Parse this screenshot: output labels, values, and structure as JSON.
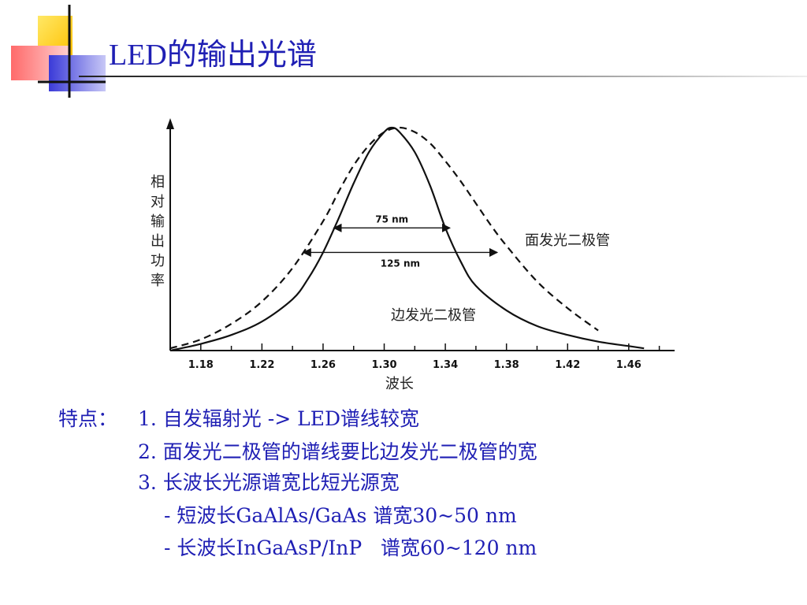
{
  "slide": {
    "title": "LED的输出光谱"
  },
  "chart_data": {
    "type": "line",
    "xlabel": "波长",
    "ylabel_chars": [
      "相",
      "对",
      "输",
      "出",
      "功",
      "率"
    ],
    "x_ticks": [
      "1.18",
      "1.22",
      "1.26",
      "1.30",
      "1.34",
      "1.38",
      "1.42",
      "1.46"
    ],
    "xlim": [
      1.16,
      1.49
    ],
    "ylim": [
      0,
      1
    ],
    "series": [
      {
        "name": "面发光二极管",
        "style": "dashed",
        "x": [
          1.16,
          1.18,
          1.2,
          1.22,
          1.24,
          1.26,
          1.27,
          1.28,
          1.29,
          1.3,
          1.31,
          1.32,
          1.33,
          1.34,
          1.35,
          1.36,
          1.37,
          1.38,
          1.4,
          1.42,
          1.44
        ],
        "y": [
          0.01,
          0.05,
          0.12,
          0.22,
          0.37,
          0.58,
          0.71,
          0.83,
          0.92,
          0.98,
          1.0,
          0.98,
          0.93,
          0.85,
          0.76,
          0.66,
          0.56,
          0.47,
          0.31,
          0.19,
          0.09
        ]
      },
      {
        "name": "边发光二极管",
        "style": "solid",
        "x": [
          1.16,
          1.18,
          1.2,
          1.22,
          1.24,
          1.25,
          1.26,
          1.27,
          1.28,
          1.29,
          1.3,
          1.305,
          1.31,
          1.32,
          1.33,
          1.34,
          1.35,
          1.36,
          1.38,
          1.4,
          1.42,
          1.44,
          1.46,
          1.47
        ],
        "y": [
          0.0,
          0.03,
          0.07,
          0.13,
          0.23,
          0.32,
          0.44,
          0.59,
          0.75,
          0.89,
          0.98,
          1.0,
          0.98,
          0.89,
          0.74,
          0.55,
          0.4,
          0.29,
          0.18,
          0.11,
          0.07,
          0.04,
          0.02,
          0.01
        ]
      }
    ],
    "annotations": [
      {
        "label": "75 nm",
        "from": 1.267,
        "to": 1.343,
        "level": 0.55
      },
      {
        "label": "125 nm",
        "from": 1.247,
        "to": 1.374,
        "level": 0.44
      }
    ]
  },
  "notes": {
    "label": "特点：",
    "items": [
      "1. 自发辐射光 -> LED谱线较宽",
      "2. 面发光二极管的谱线要比边发光二极管的宽",
      "3. 长波长光源谱宽比短光源宽",
      "- 短波长GaAlAs/GaAs 谱宽30~50 nm",
      "- 长波长InGaAsP/InP   谱宽60~120 nm"
    ]
  }
}
